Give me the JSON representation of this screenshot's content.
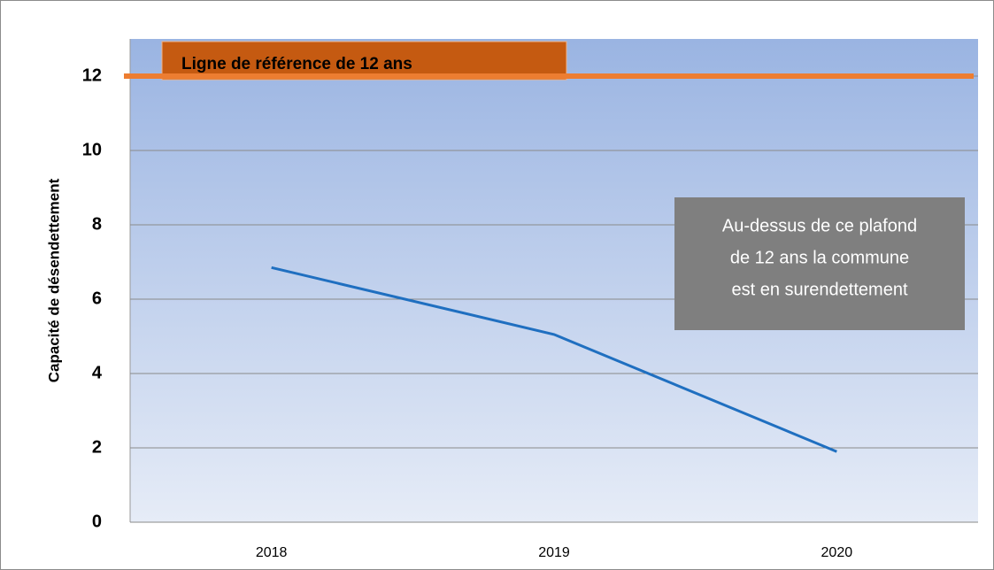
{
  "chart_data": {
    "type": "line",
    "y_label": "Capacité de désendettement",
    "categories": [
      "2018",
      "2019",
      "2020"
    ],
    "values": [
      6.85,
      5.05,
      1.9
    ],
    "color": "#1f6fc0",
    "ylim": [
      0,
      13
    ],
    "yticks": [
      0,
      2,
      4,
      6,
      8,
      10,
      12
    ],
    "grid": true,
    "reference": {
      "value": 12,
      "label": "Ligne de référence de 12 ans",
      "color": "#ed7d31",
      "label_color": "#c55a11"
    },
    "annotation": [
      "Au-dessus de ce plafond",
      "de 12 ans la commune",
      "est en surendettement"
    ]
  }
}
